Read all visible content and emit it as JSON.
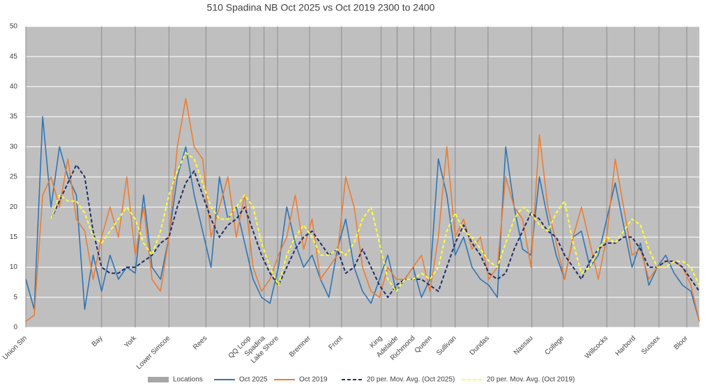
{
  "chart_data": {
    "type": "line",
    "title": "510 Spadina NB Oct 2025 vs Oct 2019 2300 to 2400",
    "x": [
      0,
      1,
      2,
      3,
      4,
      5,
      6,
      7,
      8,
      9,
      10,
      11,
      12,
      13,
      14,
      15,
      16,
      17,
      18,
      19,
      20,
      21,
      22,
      23,
      24,
      25,
      26,
      27,
      28,
      29,
      30,
      31,
      32,
      33,
      34,
      35,
      36,
      37,
      38,
      39,
      40,
      41,
      42,
      43,
      44,
      45,
      46,
      47,
      48,
      49,
      50,
      51,
      52,
      53,
      54,
      55,
      56,
      57,
      58,
      59,
      60,
      61,
      62,
      63,
      64,
      65,
      66,
      67,
      68,
      69,
      70,
      71,
      72,
      73,
      74,
      75,
      76,
      77,
      78,
      79,
      80
    ],
    "xlim": [
      0,
      80
    ],
    "xticks": [
      {
        "value": 0,
        "label": "Union Stn"
      },
      {
        "value": 9,
        "label": "Bay"
      },
      {
        "value": 13,
        "label": "York"
      },
      {
        "value": 17,
        "label": "Lower Simcoe"
      },
      {
        "value": 21.4,
        "label": "Rees"
      },
      {
        "value": 26.6,
        "label": "QQ Loop"
      },
      {
        "value": 28.3,
        "label": "Spadina"
      },
      {
        "value": 29.9,
        "label": "Lake Shore"
      },
      {
        "value": 33.7,
        "label": "Bremner"
      },
      {
        "value": 37.5,
        "label": "Front"
      },
      {
        "value": 42.2,
        "label": "King"
      },
      {
        "value": 44.1,
        "label": "Adelaide"
      },
      {
        "value": 46.1,
        "label": "Richmond"
      },
      {
        "value": 48.1,
        "label": "Queen"
      },
      {
        "value": 51,
        "label": "Sullivan"
      },
      {
        "value": 54.9,
        "label": "Dundas"
      },
      {
        "value": 60.1,
        "label": "Nassau"
      },
      {
        "value": 63.8,
        "label": "College"
      },
      {
        "value": 69,
        "label": "Willcocks"
      },
      {
        "value": 72.3,
        "label": "Harbord"
      },
      {
        "value": 75.2,
        "label": "Sussex"
      },
      {
        "value": 78.5,
        "label": "Bloor"
      }
    ],
    "ylim": [
      0,
      50
    ],
    "yticks": [
      0,
      5,
      10,
      15,
      20,
      25,
      30,
      35,
      40,
      45,
      50
    ],
    "grid": true,
    "locations": {
      "name": "Locations",
      "color": "#a6a6a6"
    },
    "series": [
      {
        "name": "Oct 2025",
        "color": "#2e75b6",
        "dashed": false,
        "values": [
          8,
          3,
          35,
          20,
          30,
          25,
          22,
          3,
          12,
          6,
          12,
          8,
          10,
          9,
          22,
          10,
          8,
          15,
          25,
          30,
          22,
          16,
          10,
          25,
          18,
          20,
          14,
          8,
          5,
          4,
          10,
          20,
          14,
          10,
          12,
          8,
          5,
          13,
          18,
          10,
          6,
          4,
          8,
          12,
          6,
          8,
          10,
          5,
          8,
          28,
          22,
          12,
          15,
          10,
          8,
          7,
          5,
          30,
          20,
          13,
          12,
          25,
          18,
          12,
          8,
          15,
          16,
          10,
          12,
          18,
          24,
          17,
          10,
          14,
          7,
          10,
          12,
          9,
          7,
          6,
          1
        ]
      },
      {
        "name": "Oct 2019",
        "color": "#ed7d31",
        "dashed": false,
        "values": [
          1,
          2,
          22,
          25,
          20,
          28,
          18,
          16,
          8,
          15,
          20,
          15,
          25,
          12,
          20,
          8,
          6,
          15,
          30,
          38,
          30,
          28,
          15,
          20,
          25,
          15,
          22,
          10,
          6,
          8,
          12,
          15,
          22,
          13,
          18,
          8,
          10,
          12,
          25,
          20,
          10,
          6,
          5,
          10,
          8,
          8,
          10,
          12,
          6,
          15,
          30,
          15,
          18,
          13,
          15,
          8,
          10,
          25,
          20,
          18,
          10,
          32,
          20,
          14,
          8,
          15,
          20,
          14,
          8,
          15,
          28,
          20,
          12,
          13,
          8,
          10,
          11,
          11,
          10,
          7,
          1
        ]
      },
      {
        "name": "20 per. Mov. Avg. (Oct 2025)",
        "color": "#1f2d6b",
        "dashed": true,
        "values": [
          null,
          null,
          null,
          18,
          21,
          24,
          27,
          25,
          16,
          10,
          9,
          9,
          10,
          10,
          11,
          12,
          14,
          15,
          20,
          24,
          26,
          22,
          18,
          15,
          17,
          18,
          20,
          16,
          12,
          9,
          7,
          10,
          13,
          15,
          16,
          14,
          12,
          13,
          9,
          10,
          13,
          10,
          7,
          5,
          7,
          8,
          8,
          8,
          7,
          6,
          10,
          14,
          17,
          14,
          12,
          9,
          8,
          9,
          13,
          16,
          19,
          18,
          16,
          15,
          12,
          10,
          8,
          11,
          13,
          14,
          14,
          15,
          15,
          13,
          10,
          10,
          11,
          11,
          10,
          8,
          6
        ]
      },
      {
        "name": "20 per. Mov. Avg. (Oct 2019)",
        "color": "#ffff33",
        "dashed": true,
        "values": [
          null,
          null,
          null,
          18,
          22,
          21,
          21,
          19,
          15,
          14,
          16,
          18,
          20,
          18,
          14,
          12,
          16,
          22,
          26,
          29,
          28,
          24,
          20,
          18,
          18,
          20,
          22,
          20,
          14,
          10,
          7,
          12,
          15,
          17,
          15,
          12,
          12,
          13,
          12,
          14,
          18,
          20,
          14,
          8,
          6,
          8,
          8,
          9,
          8,
          10,
          16,
          19,
          16,
          15,
          13,
          11,
          10,
          14,
          18,
          20,
          19,
          17,
          16,
          19,
          21,
          14,
          9,
          10,
          13,
          15,
          14,
          16,
          18,
          17,
          13,
          10,
          10,
          11,
          11,
          10,
          7
        ]
      }
    ]
  }
}
